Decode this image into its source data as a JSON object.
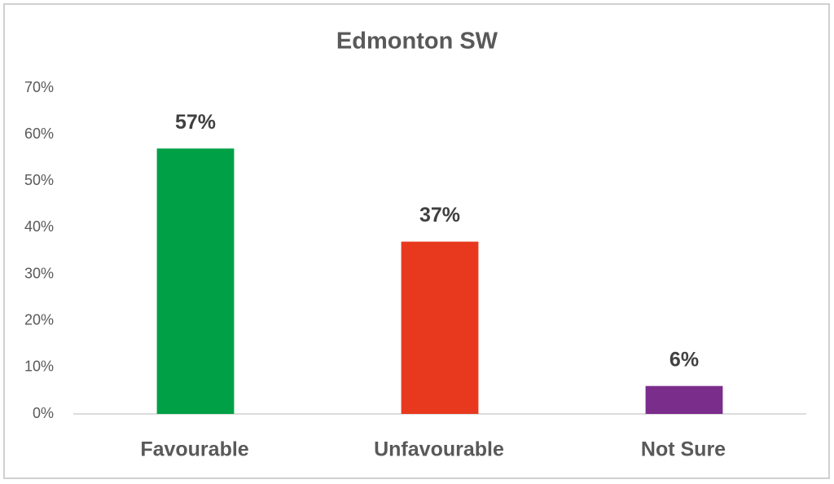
{
  "chart_data": {
    "type": "bar",
    "title": "Edmonton SW",
    "categories": [
      "Favourable",
      "Unfavourable",
      "Not Sure"
    ],
    "values": [
      57,
      37,
      6
    ],
    "value_labels": [
      "57%",
      "37%",
      "6%"
    ],
    "colors": [
      "#00a046",
      "#e8391e",
      "#7b2d8b"
    ],
    "ylim": [
      0,
      70
    ],
    "yticks": [
      {
        "value": 0,
        "label": "0%"
      },
      {
        "value": 10,
        "label": "10%"
      },
      {
        "value": 20,
        "label": "20%"
      },
      {
        "value": 30,
        "label": "30%"
      },
      {
        "value": 40,
        "label": "40%"
      },
      {
        "value": 50,
        "label": "50%"
      },
      {
        "value": 60,
        "label": "60%"
      },
      {
        "value": 70,
        "label": "70%"
      }
    ],
    "grid": false
  }
}
